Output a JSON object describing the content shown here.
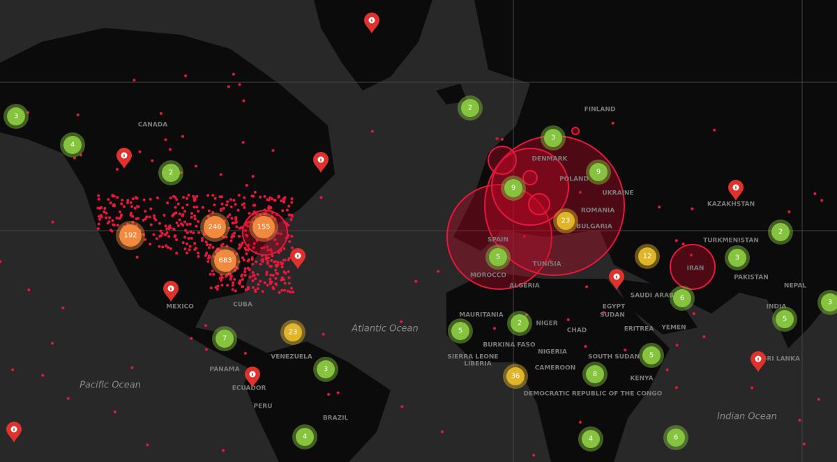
{
  "map": {
    "clusters": [
      {
        "count": 3,
        "level": "low"
      },
      {
        "count": 4,
        "level": "low"
      },
      {
        "count": 2,
        "level": "low"
      },
      {
        "count": 2,
        "level": "low"
      },
      {
        "count": 3,
        "level": "low"
      },
      {
        "count": 9,
        "level": "low"
      },
      {
        "count": 9,
        "level": "low"
      },
      {
        "count": 5,
        "level": "low"
      },
      {
        "count": 5,
        "level": "low"
      },
      {
        "count": 2,
        "level": "low"
      },
      {
        "count": 7,
        "level": "low"
      },
      {
        "count": 3,
        "level": "low"
      },
      {
        "count": 8,
        "level": "low"
      },
      {
        "count": 5,
        "level": "low"
      },
      {
        "count": 2,
        "level": "low"
      },
      {
        "count": 3,
        "level": "low"
      },
      {
        "count": 6,
        "level": "low"
      },
      {
        "count": 3,
        "level": "low"
      },
      {
        "count": 5,
        "level": "low"
      },
      {
        "count": 4,
        "level": "low"
      },
      {
        "count": 4,
        "level": "low"
      },
      {
        "count": 6,
        "level": "low"
      },
      {
        "count": 23,
        "level": "medium"
      },
      {
        "count": 12,
        "level": "medium"
      },
      {
        "count": 23,
        "level": "medium"
      },
      {
        "count": 36,
        "level": "medium"
      },
      {
        "count": 192,
        "level": "high"
      },
      {
        "count": 246,
        "level": "high"
      },
      {
        "count": 155,
        "level": "high"
      },
      {
        "count": 683,
        "level": "high"
      }
    ],
    "level_colors": {
      "low": "#86c440",
      "medium": "#e1b52a",
      "high": "#f08a3e"
    },
    "labels": [
      "CANADA",
      "MEXICO",
      "CUBA",
      "VENEZUELA",
      "PANAMA",
      "PERU",
      "BRAZIL",
      "ECUADOR",
      "FINLAND",
      "DENMARK",
      "POLAND",
      "UKRAINE",
      "ROMANIA",
      "BULGARIA",
      "SPAIN",
      "MOROCCO",
      "ALGERIA",
      "TUNISIA",
      "EGYPT",
      "SAUDI ARABIA",
      "IRAN",
      "TURKMENISTAN",
      "KAZAKHSTAN",
      "PAKISTAN",
      "INDIA",
      "NEPAL",
      "SRI LANKA",
      "MAURITANIA",
      "NIGER",
      "CHAD",
      "SUDAN",
      "SOUTH SUDAN",
      "NIGERIA",
      "BURKINA FASO",
      "SIERRA LEONE",
      "LIBERIA",
      "CAMEROON",
      "DEMOCRATIC REPUBLIC OF THE CONGO",
      "KENYA",
      "ERITREA",
      "YEMEN"
    ],
    "oceans": [
      "Atlantic Ocean",
      "Pacific Ocean",
      "Indian Ocean"
    ]
  }
}
